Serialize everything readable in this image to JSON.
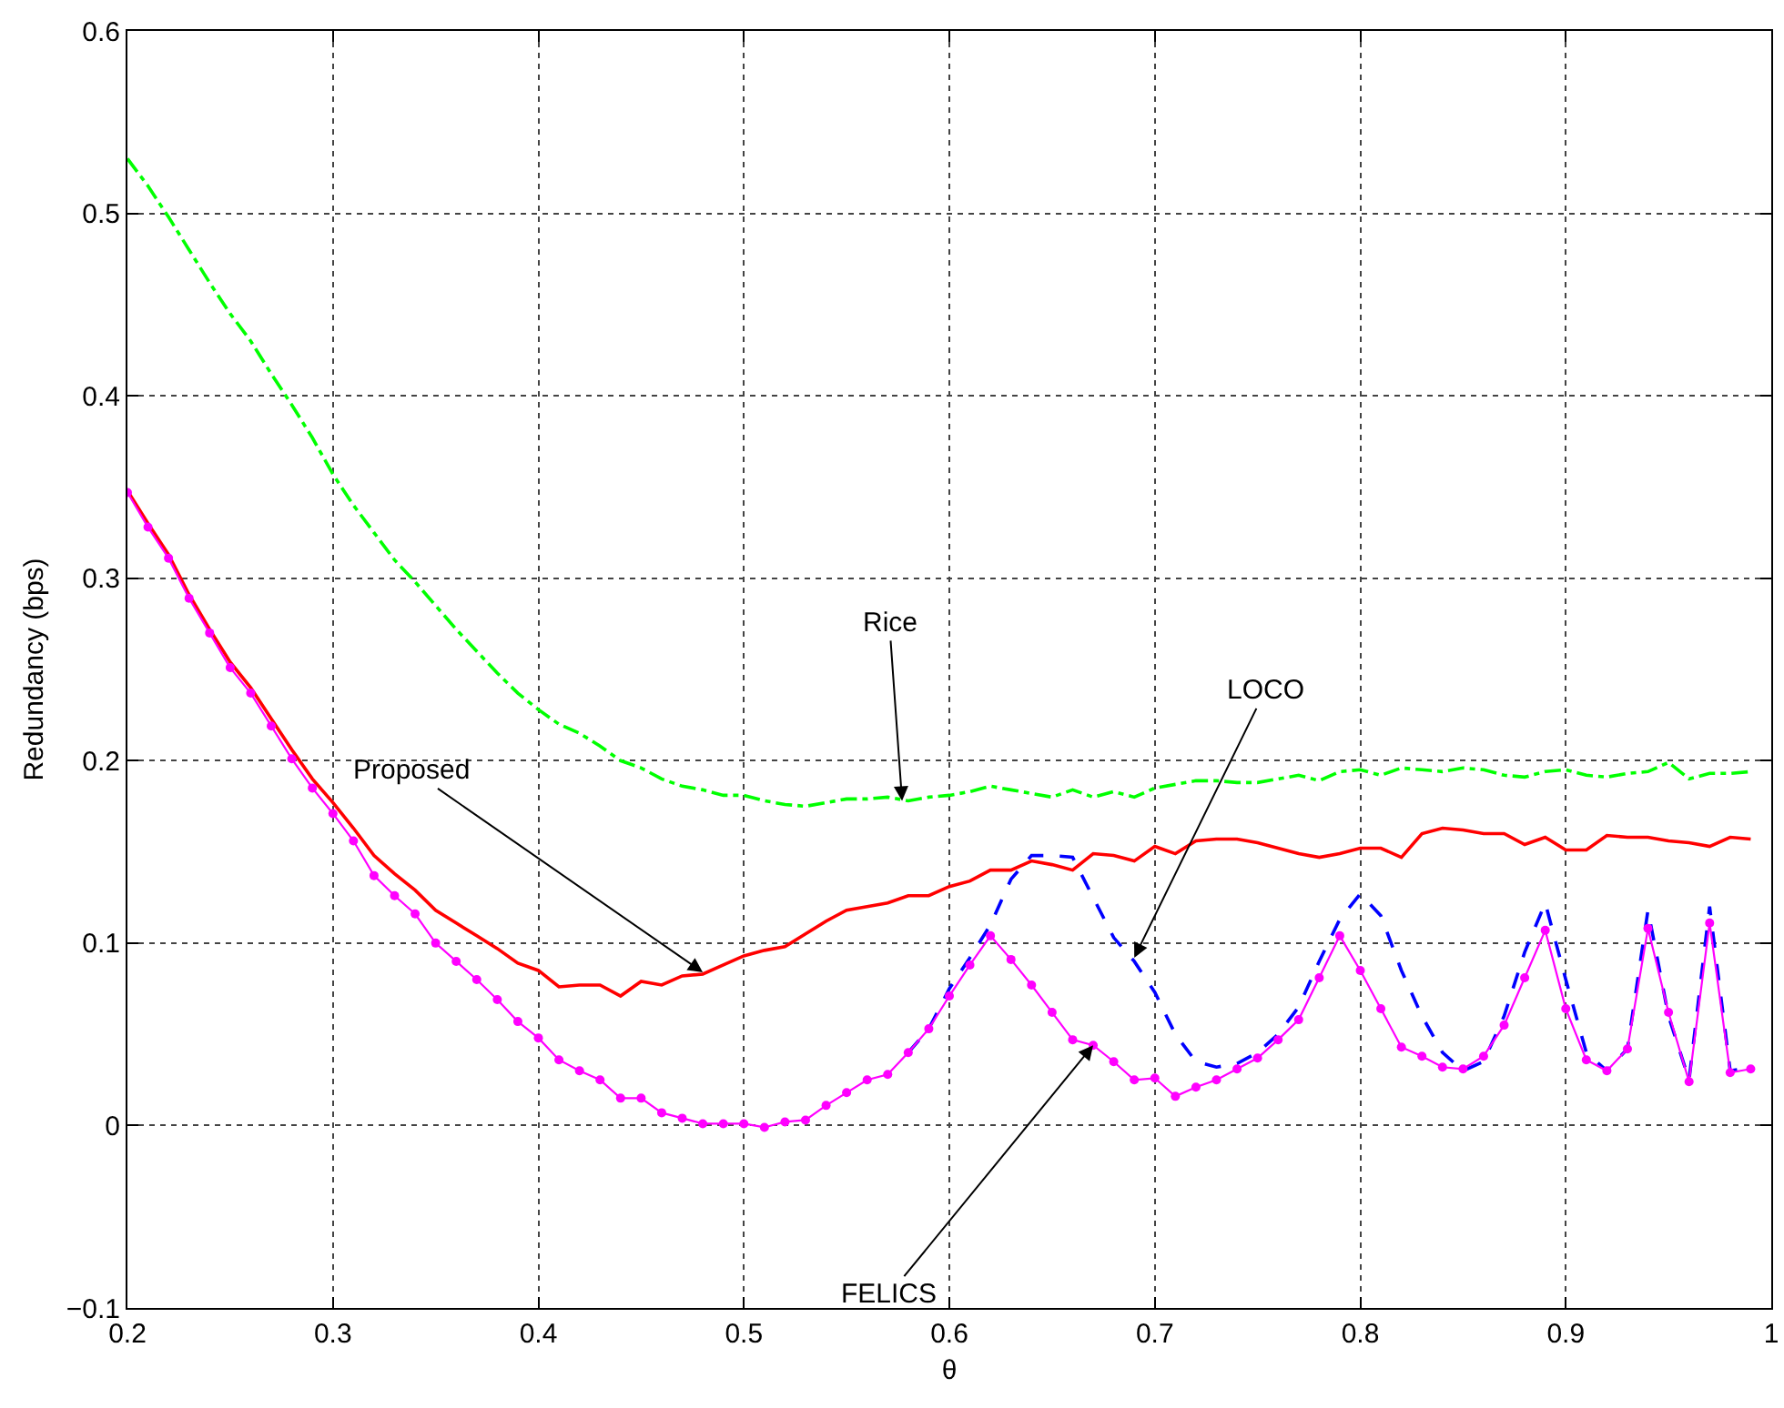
{
  "chart_data": {
    "type": "line",
    "xlabel": "θ",
    "ylabel": "Redundancy (bps)",
    "x": [
      0.2,
      0.21,
      0.22,
      0.23,
      0.24,
      0.25,
      0.26,
      0.27,
      0.28,
      0.29,
      0.3,
      0.31,
      0.32,
      0.33,
      0.34,
      0.35,
      0.36,
      0.37,
      0.38,
      0.39,
      0.4,
      0.41,
      0.42,
      0.43,
      0.44,
      0.45,
      0.46,
      0.47,
      0.48,
      0.49,
      0.5,
      0.51,
      0.52,
      0.53,
      0.54,
      0.55,
      0.56,
      0.57,
      0.58,
      0.59,
      0.6,
      0.61,
      0.62,
      0.63,
      0.64,
      0.65,
      0.66,
      0.67,
      0.68,
      0.69,
      0.7,
      0.71,
      0.72,
      0.73,
      0.74,
      0.75,
      0.76,
      0.77,
      0.78,
      0.79,
      0.8,
      0.81,
      0.82,
      0.83,
      0.84,
      0.85,
      0.86,
      0.87,
      0.88,
      0.89,
      0.9,
      0.91,
      0.92,
      0.93,
      0.94,
      0.95,
      0.96,
      0.97,
      0.98,
      0.99
    ],
    "series": [
      {
        "color": "#00ff00",
        "line_style": "dashdot",
        "marker": "none",
        "values": [
          0.53,
          0.515,
          0.498,
          0.48,
          0.462,
          0.445,
          0.43,
          0.412,
          0.395,
          0.377,
          0.357,
          0.34,
          0.325,
          0.31,
          0.298,
          0.285,
          0.272,
          0.26,
          0.248,
          0.237,
          0.228,
          0.22,
          0.215,
          0.208,
          0.2,
          0.196,
          0.19,
          0.186,
          0.184,
          0.181,
          0.181,
          0.178,
          0.176,
          0.175,
          0.177,
          0.179,
          0.179,
          0.18,
          0.178,
          0.18,
          0.181,
          0.183,
          0.186,
          0.184,
          0.182,
          0.18,
          0.184,
          0.18,
          0.183,
          0.18,
          0.185,
          0.187,
          0.189,
          0.189,
          0.188,
          0.188,
          0.19,
          0.192,
          0.189,
          0.194,
          0.195,
          0.192,
          0.196,
          0.195,
          0.194,
          0.196,
          0.195,
          0.192,
          0.191,
          0.194,
          0.195,
          0.192,
          0.191,
          0.193,
          0.194,
          0.199,
          0.19,
          0.193,
          0.193,
          0.194
        ]
      },
      {
        "color": "#ff0000",
        "line_style": "solid",
        "marker": "none",
        "values": [
          0.348,
          0.33,
          0.313,
          0.291,
          0.272,
          0.254,
          0.24,
          0.223,
          0.206,
          0.19,
          0.177,
          0.163,
          0.148,
          0.138,
          0.129,
          0.118,
          0.111,
          0.104,
          0.097,
          0.089,
          0.085,
          0.076,
          0.077,
          0.077,
          0.071,
          0.079,
          0.077,
          0.082,
          0.083,
          0.088,
          0.093,
          0.096,
          0.098,
          0.105,
          0.112,
          0.118,
          0.12,
          0.122,
          0.126,
          0.126,
          0.131,
          0.134,
          0.14,
          0.14,
          0.145,
          0.143,
          0.14,
          0.149,
          0.148,
          0.145,
          0.153,
          0.149,
          0.156,
          0.157,
          0.157,
          0.155,
          0.152,
          0.149,
          0.147,
          0.149,
          0.152,
          0.152,
          0.147,
          0.16,
          0.163,
          0.162,
          0.16,
          0.16,
          0.154,
          0.158,
          0.151,
          0.151,
          0.159,
          0.158,
          0.158,
          0.156,
          0.155,
          0.153,
          0.158,
          0.157
        ]
      },
      {
        "color": "#0000ff",
        "line_style": "dashed",
        "marker": "none",
        "values": [
          null,
          null,
          null,
          null,
          null,
          null,
          null,
          null,
          null,
          null,
          null,
          null,
          null,
          null,
          null,
          null,
          null,
          null,
          null,
          null,
          null,
          null,
          null,
          null,
          null,
          null,
          null,
          null,
          null,
          null,
          null,
          null,
          null,
          null,
          null,
          null,
          null,
          null,
          0.04,
          0.053,
          0.075,
          0.092,
          0.11,
          0.135,
          0.148,
          0.148,
          0.147,
          0.125,
          0.103,
          0.09,
          0.073,
          0.05,
          0.035,
          0.032,
          0.034,
          0.04,
          0.05,
          0.065,
          0.09,
          0.113,
          0.127,
          0.115,
          0.085,
          0.06,
          0.04,
          0.03,
          0.035,
          0.06,
          0.095,
          0.122,
          0.08,
          0.04,
          0.03,
          0.042,
          0.118,
          0.06,
          0.025,
          0.12,
          0.03,
          0.032
        ]
      },
      {
        "color": "#ff00ff",
        "line_style": "solid",
        "marker": "circle",
        "values": [
          0.347,
          0.328,
          0.311,
          0.289,
          0.27,
          0.251,
          0.237,
          0.219,
          0.201,
          0.185,
          0.171,
          0.156,
          0.137,
          0.126,
          0.116,
          0.1,
          0.09,
          0.08,
          0.069,
          0.057,
          0.048,
          0.036,
          0.03,
          0.025,
          0.015,
          0.015,
          0.007,
          0.004,
          0.001,
          0.001,
          0.001,
          -0.001,
          0.002,
          0.003,
          0.011,
          0.018,
          0.025,
          0.028,
          0.04,
          0.053,
          0.071,
          0.088,
          0.104,
          0.091,
          0.077,
          0.062,
          0.047,
          0.044,
          0.035,
          0.025,
          0.026,
          0.016,
          0.021,
          0.025,
          0.031,
          0.037,
          0.047,
          0.058,
          0.081,
          0.104,
          0.085,
          0.064,
          0.043,
          0.038,
          0.032,
          0.031,
          0.038,
          0.055,
          0.081,
          0.107,
          0.064,
          0.036,
          0.03,
          0.042,
          0.108,
          0.062,
          0.024,
          0.111,
          0.029,
          0.031
        ]
      }
    ],
    "xlim": [
      0.2,
      1
    ],
    "xticks": [
      0.2,
      0.3,
      0.4,
      0.5,
      0.6,
      0.7,
      0.8,
      0.9,
      1
    ],
    "ylim": [
      -0.1,
      0.6
    ],
    "yticks": [
      {
        "value": -0.1,
        "label": "−0.1"
      },
      0,
      0.1,
      0.2,
      0.3,
      0.4,
      0.5,
      0.6
    ],
    "grid": true,
    "annotations": [
      {
        "text": "Rice",
        "x": 0.577,
        "y": 0.178
      },
      {
        "text": "LOCO",
        "x": 0.69,
        "y": 0.092
      },
      {
        "text": "Proposed",
        "x": 0.48,
        "y": 0.084
      },
      {
        "text": "FELICS",
        "x": 0.67,
        "y": 0.044
      }
    ]
  }
}
